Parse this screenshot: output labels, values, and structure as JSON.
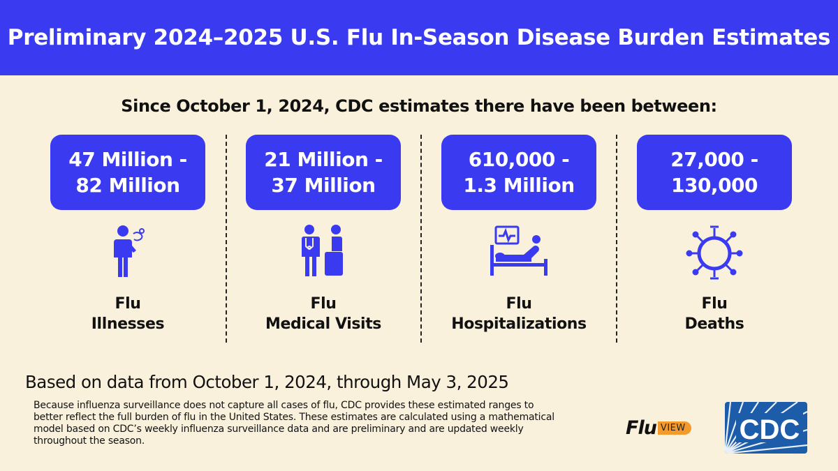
{
  "header": {
    "title": "Preliminary 2024–2025 U.S. Flu In-Season Disease Burden Estimates"
  },
  "intro": "Since October 1, 2024, CDC estimates there have been between:",
  "columns": [
    {
      "range_line1": "47 Million -",
      "range_line2": "82 Million",
      "label_line1": "Flu",
      "label_line2": "Illnesses",
      "icon": "sick-person-icon"
    },
    {
      "range_line1": "21 Million -",
      "range_line2": "37 Million",
      "label_line1": "Flu",
      "label_line2": "Medical Visits",
      "icon": "doctor-patient-icon"
    },
    {
      "range_line1": "610,000 -",
      "range_line2": "1.3 Million",
      "label_line1": "Flu",
      "label_line2": "Hospitalizations",
      "icon": "hospital-bed-icon"
    },
    {
      "range_line1": "27,000 -",
      "range_line2": "130,000",
      "label_line1": "Flu",
      "label_line2": "Deaths",
      "icon": "virus-icon"
    }
  ],
  "footer": {
    "based_on": "Based on data from October 1, 2024, through May 3, 2025",
    "note": "Because influenza surveillance does not capture all cases of flu, CDC provides these estimated ranges to better reflect the full burden of flu in the United States. These estimates are calculated using a mathematical model based on CDC’s weekly influenza surveillance data and are preliminary and are updated weekly throughout the season."
  },
  "logos": {
    "fluview_flu": "Flu",
    "fluview_view": "VIEW",
    "cdc": "CDC"
  },
  "colors": {
    "accent": "#3a3af0",
    "background": "#faf1dc",
    "cdc_blue": "#1d5ca8",
    "fluview_orange": "#f39a2c"
  }
}
